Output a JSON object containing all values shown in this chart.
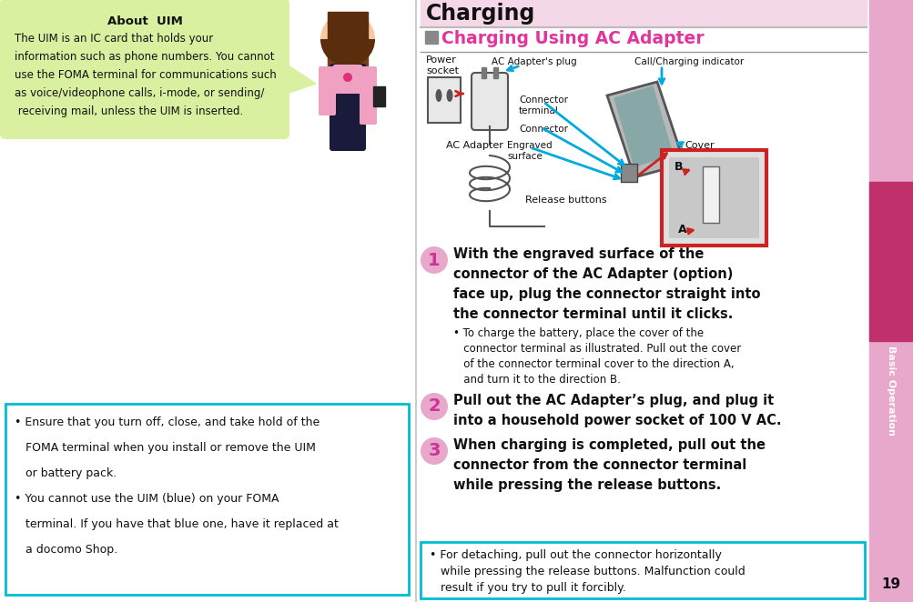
{
  "page_bg": "#ffffff",
  "sidebar_pink": "#e8a8cc",
  "sidebar_magenta": "#c0306a",
  "title_banner_color": "#f5d8e8",
  "title_text": "Charging",
  "section_square_color": "#888888",
  "section_title": "Charging Using AC Adapter",
  "section_title_color": "#e0359a",
  "about_uim_bg": "#d8f0a0",
  "about_uim_title": "About  UIM",
  "about_uim_body1": "The UIM is an IC card that holds your",
  "about_uim_body2": "information such as phone numbers. You cannot",
  "about_uim_body3": "use the FOMA terminal for communications such",
  "about_uim_body4": "as voice/videophone calls, i-mode, or sending/",
  "about_uim_body5": " receiving mail, unless the UIM is inserted.",
  "note_border": "#00bcd4",
  "note_line1": "• Ensure that you turn off, close, and take hold of the",
  "note_line2": "   FOMA terminal when you install or remove the UIM",
  "note_line3": "   or battery pack.",
  "note_line4": "• You cannot use the UIM (blue) on your FOMA",
  "note_line5": "   terminal. If you have that blue one, have it replaced at",
  "note_line6": "   a docomo Shop.",
  "detach_line1": "• For detaching, pull out the connector horizontally",
  "detach_line2": "   while pressing the release buttons. Malfunction could",
  "detach_line3": "   result if you try to pull it forcibly.",
  "step1_text1": "With the engraved surface of the",
  "step1_text2": "connector of the AC Adapter (option)",
  "step1_text3": "face up, plug the connector straight into",
  "step1_text4": "the connector terminal until it clicks.",
  "step1_b1": "• To charge the battery, place the cover of the",
  "step1_b2": "   connector terminal as illustrated. Pull out the cover",
  "step1_b3": "   of the connector terminal cover to the direction A,",
  "step1_b4": "   and turn it to the direction B.",
  "step2_text1": "Pull out the AC Adapter’s plug, and plug it",
  "step2_text2": "into a household power socket of 100 V AC.",
  "step3_text1": "When charging is completed, pull out the",
  "step3_text2": "connector from the connector terminal",
  "step3_text3": "while pressing the release buttons.",
  "step_num_color": "#cc3399",
  "step_circle_color": "#e8a8cc",
  "arrow_cyan": "#00aadd",
  "arrow_red": "#cc2222",
  "text_color": "#111111",
  "page_num": "19",
  "basic_op": "Basic Operation"
}
